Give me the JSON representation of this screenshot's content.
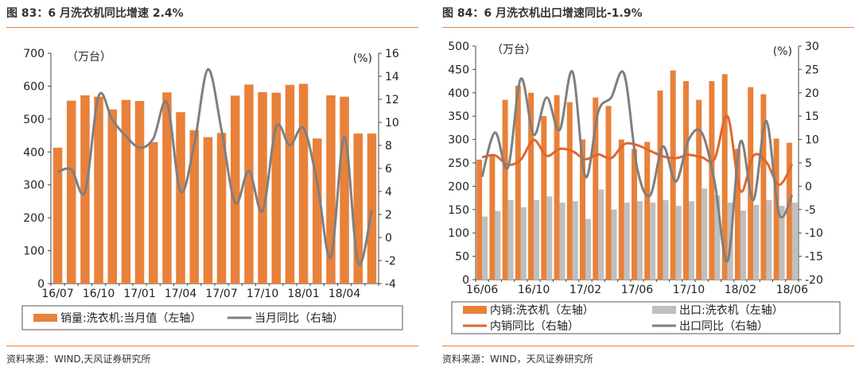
{
  "chart_data": [
    {
      "type": "bar+line",
      "title": "图 83：6 月洗衣机同比增速 2.4%",
      "source": "资料来源：WIND,天风证券研究所",
      "left_unit": "（万台）",
      "right_unit": "(%)",
      "ylim_left": [
        0,
        700
      ],
      "yticks_left": [
        0,
        100,
        200,
        300,
        400,
        500,
        600,
        700
      ],
      "ylim_right": [
        -4,
        16
      ],
      "yticks_right": [
        -4,
        -2,
        0,
        2,
        4,
        6,
        8,
        10,
        12,
        14,
        16
      ],
      "x_tick_labels": [
        {
          "index": 0,
          "label": "16/07"
        },
        {
          "index": 3,
          "label": "16/10"
        },
        {
          "index": 6,
          "label": "17/01"
        },
        {
          "index": 9,
          "label": "17/04"
        },
        {
          "index": 12,
          "label": "17/07"
        },
        {
          "index": 15,
          "label": "17/10"
        },
        {
          "index": 18,
          "label": "18/01"
        },
        {
          "index": 21,
          "label": "18/04"
        }
      ],
      "series": [
        {
          "name": "销量:洗衣机:当月值（左轴）",
          "type": "bar",
          "axis": "left",
          "color": "#e8813a",
          "values": [
            413,
            556,
            572,
            568,
            529,
            558,
            555,
            430,
            581,
            521,
            466,
            445,
            458,
            571,
            605,
            582,
            580,
            604,
            607,
            441,
            572,
            568,
            456,
            456
          ]
        },
        {
          "name": "当月同比（右轴）",
          "type": "line",
          "axis": "right",
          "color": "#7f7f7f",
          "values": [
            5.7,
            5.9,
            4.0,
            12.3,
            10.2,
            8.8,
            7.8,
            8.6,
            11.7,
            4.0,
            8.1,
            14.6,
            9.3,
            3.0,
            5.8,
            2.3,
            9.6,
            8.0,
            9.5,
            4.8,
            -1.7,
            8.7,
            -2.2,
            2.4
          ]
        }
      ]
    },
    {
      "type": "bar+line",
      "title": "图 84：6 月洗衣机出口增速同比-1.9%",
      "source": "资料来源：WIND，天风证券研究所",
      "left_unit": "（万台）",
      "right_unit": "(%)",
      "ylim_left": [
        0,
        500
      ],
      "yticks_left": [
        0,
        50,
        100,
        150,
        200,
        250,
        300,
        350,
        400,
        450,
        500
      ],
      "ylim_right": [
        -20,
        30
      ],
      "yticks_right": [
        -20,
        -15,
        -10,
        -5,
        0,
        5,
        10,
        15,
        20,
        25,
        30
      ],
      "x_tick_labels": [
        {
          "index": 0,
          "label": "16/06"
        },
        {
          "index": 4,
          "label": "16/10"
        },
        {
          "index": 8,
          "label": "17/02"
        },
        {
          "index": 12,
          "label": "17/06"
        },
        {
          "index": 16,
          "label": "17/10"
        },
        {
          "index": 20,
          "label": "18/02"
        },
        {
          "index": 24,
          "label": "18/06"
        }
      ],
      "series": [
        {
          "name": "内销:洗衣机（左轴）",
          "type": "bar",
          "axis": "left",
          "color": "#e8813a",
          "values": [
            257,
            265,
            385,
            415,
            400,
            350,
            395,
            380,
            300,
            390,
            372,
            300,
            280,
            295,
            405,
            448,
            425,
            385,
            425,
            440,
            280,
            412,
            397,
            302,
            293
          ]
        },
        {
          "name": "出口:洗衣机（左轴）",
          "type": "bar",
          "axis": "left",
          "color": "#bfbfbf",
          "values": [
            135,
            147,
            170,
            155,
            170,
            178,
            165,
            168,
            130,
            193,
            150,
            165,
            168,
            165,
            170,
            158,
            168,
            195,
            180,
            165,
            148,
            160,
            170,
            158,
            165
          ]
        },
        {
          "name": "内销同比（右轴）",
          "type": "line",
          "axis": "right",
          "color": "#e0672e",
          "values": [
            6.2,
            6.6,
            4.6,
            5.7,
            9.9,
            6.5,
            8.0,
            7.5,
            5.8,
            6.8,
            6.0,
            9.0,
            8.8,
            7.6,
            6.4,
            6.0,
            6.7,
            6.2,
            5.8,
            15.0,
            -1.0,
            6.5,
            5.2,
            0.3,
            4.7
          ]
        },
        {
          "name": "出口同比（右轴）",
          "type": "line",
          "axis": "right",
          "color": "#7f7f7f",
          "values": [
            2.0,
            11.5,
            4.0,
            23.0,
            11.0,
            19.0,
            12.0,
            24.5,
            2.0,
            16.0,
            19.0,
            24.0,
            4.0,
            -2.0,
            8.5,
            1.0,
            10.0,
            11.5,
            1.0,
            -16.0,
            9.5,
            -3.0,
            14.0,
            -6.0,
            -1.9
          ]
        }
      ]
    }
  ]
}
